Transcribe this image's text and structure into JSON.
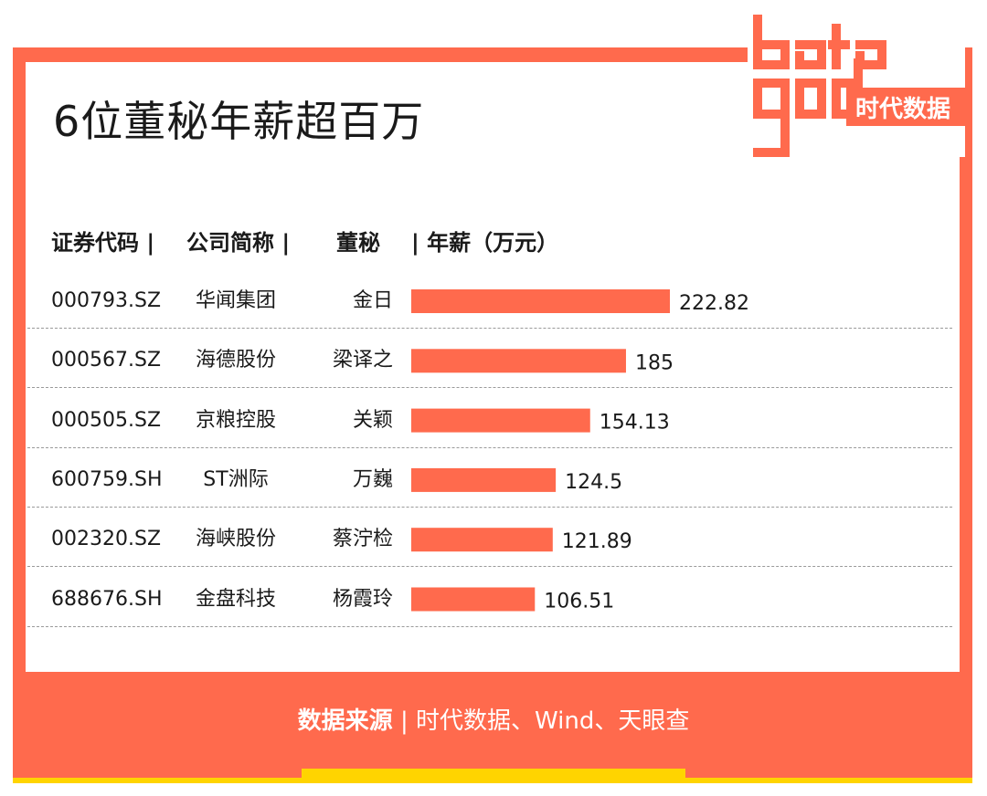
{
  "title": "6位董秘年薪超百万",
  "logo": {
    "word_top": "data",
    "word_bottom": "god",
    "brand": "时代数据"
  },
  "headers": {
    "code": "证券代码 |",
    "company": "公司简称 |",
    "secretary": "董秘",
    "salary": "| 年薪（万元）"
  },
  "colors": {
    "accent": "#ff6a4d",
    "bar": "#ff6a4d",
    "highlight": "#ffd400"
  },
  "chart_data": {
    "type": "bar",
    "orientation": "horizontal",
    "title": "6位董秘年薪超百万",
    "ylabel": "年薪（万元）",
    "categories": [
      "金日",
      "梁译之",
      "关颖",
      "万巍",
      "蔡泞检",
      "杨霞玲"
    ],
    "values": [
      222.82,
      185,
      154.13,
      124.5,
      121.89,
      106.51
    ],
    "value_labels": [
      "222.82",
      "185",
      "154.13",
      "124.5",
      "121.89",
      "106.51"
    ],
    "rows": [
      {
        "code": "000793.SZ",
        "company": "华闻集团",
        "secretary": "金日",
        "salary": 222.82,
        "label": "222.82"
      },
      {
        "code": "000567.SZ",
        "company": "海德股份",
        "secretary": "梁译之",
        "salary": 185,
        "label": "185"
      },
      {
        "code": "000505.SZ",
        "company": "京粮控股",
        "secretary": "关颖",
        "salary": 154.13,
        "label": "154.13"
      },
      {
        "code": "600759.SH",
        "company": "ST洲际",
        "secretary": "万巍",
        "salary": 124.5,
        "label": "124.5"
      },
      {
        "code": "002320.SZ",
        "company": "海峡股份",
        "secretary": "蔡泞检",
        "salary": 121.89,
        "label": "121.89"
      },
      {
        "code": "688676.SH",
        "company": "金盘科技",
        "secretary": "杨霞玲",
        "salary": 106.51,
        "label": "106.51"
      }
    ],
    "grid": false,
    "legend": "none"
  },
  "footer": {
    "source_label": "数据来源",
    "separator": "|",
    "source_text": "时代数据、Wind、天眼查"
  }
}
